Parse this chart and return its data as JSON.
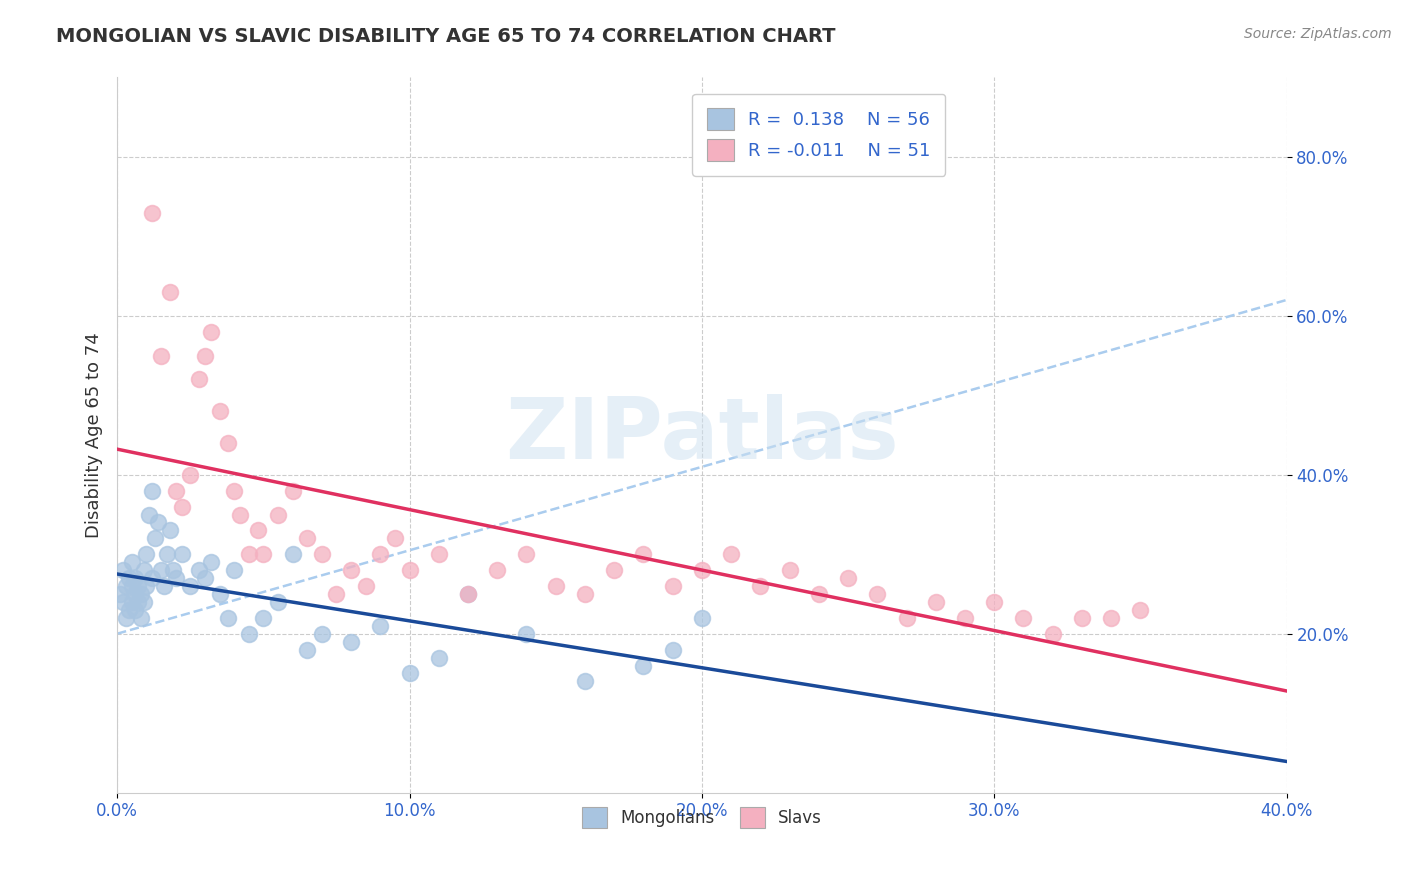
{
  "title": "MONGOLIAN VS SLAVIC DISABILITY AGE 65 TO 74 CORRELATION CHART",
  "source": "Source: ZipAtlas.com",
  "ylabel": "Disability Age 65 to 74",
  "xlim": [
    0.0,
    0.4
  ],
  "ylim": [
    0.0,
    0.9
  ],
  "xtick_labels": [
    "0.0%",
    "10.0%",
    "20.0%",
    "30.0%",
    "40.0%"
  ],
  "xtick_vals": [
    0.0,
    0.1,
    0.2,
    0.3,
    0.4
  ],
  "ytick_labels": [
    "20.0%",
    "40.0%",
    "60.0%",
    "80.0%"
  ],
  "ytick_vals": [
    0.2,
    0.4,
    0.6,
    0.8
  ],
  "mongolian_R": 0.138,
  "mongolian_N": 56,
  "slavic_R": -0.011,
  "slavic_N": 51,
  "mongolian_color": "#a8c4e0",
  "mongolian_line_color": "#1a4a99",
  "slavic_color": "#f4b0c0",
  "slavic_line_color": "#e03060",
  "dash_color": "#aaccee",
  "grid_color": "#cccccc",
  "background_color": "#ffffff",
  "mongolian_x": [
    0.001,
    0.002,
    0.002,
    0.003,
    0.003,
    0.004,
    0.004,
    0.005,
    0.005,
    0.005,
    0.006,
    0.006,
    0.006,
    0.007,
    0.007,
    0.008,
    0.008,
    0.009,
    0.009,
    0.01,
    0.01,
    0.011,
    0.012,
    0.012,
    0.013,
    0.014,
    0.015,
    0.016,
    0.017,
    0.018,
    0.019,
    0.02,
    0.022,
    0.025,
    0.028,
    0.03,
    0.032,
    0.035,
    0.038,
    0.04,
    0.045,
    0.05,
    0.055,
    0.06,
    0.065,
    0.07,
    0.08,
    0.09,
    0.1,
    0.11,
    0.12,
    0.14,
    0.16,
    0.18,
    0.19,
    0.2
  ],
  "mongolian_y": [
    0.25,
    0.28,
    0.24,
    0.26,
    0.22,
    0.27,
    0.23,
    0.26,
    0.24,
    0.29,
    0.25,
    0.23,
    0.27,
    0.24,
    0.26,
    0.25,
    0.22,
    0.28,
    0.24,
    0.26,
    0.3,
    0.35,
    0.38,
    0.27,
    0.32,
    0.34,
    0.28,
    0.26,
    0.3,
    0.33,
    0.28,
    0.27,
    0.3,
    0.26,
    0.28,
    0.27,
    0.29,
    0.25,
    0.22,
    0.28,
    0.2,
    0.22,
    0.24,
    0.3,
    0.18,
    0.2,
    0.19,
    0.21,
    0.15,
    0.17,
    0.25,
    0.2,
    0.14,
    0.16,
    0.18,
    0.22
  ],
  "slavic_x": [
    0.012,
    0.015,
    0.018,
    0.02,
    0.022,
    0.025,
    0.028,
    0.03,
    0.032,
    0.035,
    0.038,
    0.04,
    0.042,
    0.045,
    0.048,
    0.05,
    0.055,
    0.06,
    0.065,
    0.07,
    0.075,
    0.08,
    0.085,
    0.09,
    0.095,
    0.1,
    0.11,
    0.12,
    0.13,
    0.14,
    0.15,
    0.16,
    0.17,
    0.18,
    0.19,
    0.2,
    0.21,
    0.22,
    0.23,
    0.24,
    0.25,
    0.26,
    0.27,
    0.28,
    0.29,
    0.3,
    0.31,
    0.32,
    0.33,
    0.34,
    0.35
  ],
  "slavic_y": [
    0.73,
    0.55,
    0.63,
    0.38,
    0.36,
    0.4,
    0.52,
    0.55,
    0.58,
    0.48,
    0.44,
    0.38,
    0.35,
    0.3,
    0.33,
    0.3,
    0.35,
    0.38,
    0.32,
    0.3,
    0.25,
    0.28,
    0.26,
    0.3,
    0.32,
    0.28,
    0.3,
    0.25,
    0.28,
    0.3,
    0.26,
    0.25,
    0.28,
    0.3,
    0.26,
    0.28,
    0.3,
    0.26,
    0.28,
    0.25,
    0.27,
    0.25,
    0.22,
    0.24,
    0.22,
    0.24,
    0.22,
    0.2,
    0.22,
    0.22,
    0.23
  ],
  "watermark": "ZIPatlas",
  "legend_R_color": "#3366cc",
  "legend_text_color": "#333333"
}
